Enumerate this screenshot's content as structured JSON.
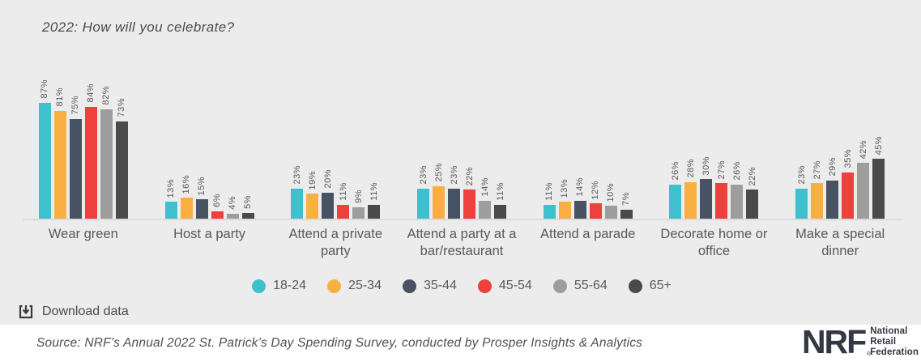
{
  "chart_data": {
    "type": "bar",
    "title": "2022: How will you celebrate?",
    "categories": [
      "Wear green",
      "Host a party",
      "Attend a private party",
      "Attend a party at a bar/restaurant",
      "Attend a parade",
      "Decorate home or office",
      "Make a special dinner"
    ],
    "series": [
      {
        "name": "18-24",
        "color": "#3FC0CD",
        "values": [
          87,
          13,
          23,
          23,
          11,
          26,
          23
        ]
      },
      {
        "name": "25-34",
        "color": "#FAAF42",
        "values": [
          81,
          16,
          19,
          25,
          13,
          28,
          27
        ]
      },
      {
        "name": "35-44",
        "color": "#475362",
        "values": [
          75,
          15,
          20,
          23,
          14,
          30,
          29
        ]
      },
      {
        "name": "45-54",
        "color": "#EE403D",
        "values": [
          84,
          6,
          11,
          22,
          12,
          27,
          35
        ]
      },
      {
        "name": "55-64",
        "color": "#9D9D9C",
        "values": [
          82,
          4,
          9,
          14,
          10,
          26,
          42
        ]
      },
      {
        "name": "65+",
        "color": "#4A4A4A",
        "values": [
          73,
          5,
          11,
          11,
          7,
          22,
          45
        ]
      }
    ],
    "value_suffix": "%",
    "xlabel": "",
    "ylabel": "",
    "ylim": [
      0,
      100
    ],
    "grid": false,
    "legend_position": "bottom",
    "bar_value_labels_rotated": true
  },
  "colors": {
    "background": "#ECECEC",
    "axis_line": "#DBDBDB",
    "text": "#58595B",
    "footer_background": "#FFFFFF",
    "logo": "#343744"
  },
  "download": {
    "label": "Download data",
    "icon": "download-icon"
  },
  "footer": {
    "source": "Source: NRF’s Annual 2022 St. Patrick’s Day Spending Survey, conducted by Prosper Insights & Analytics",
    "logo": {
      "abbr": "NRF",
      "registered": "®",
      "line1": "National",
      "line2": "Retail",
      "line3": "Federation"
    }
  }
}
